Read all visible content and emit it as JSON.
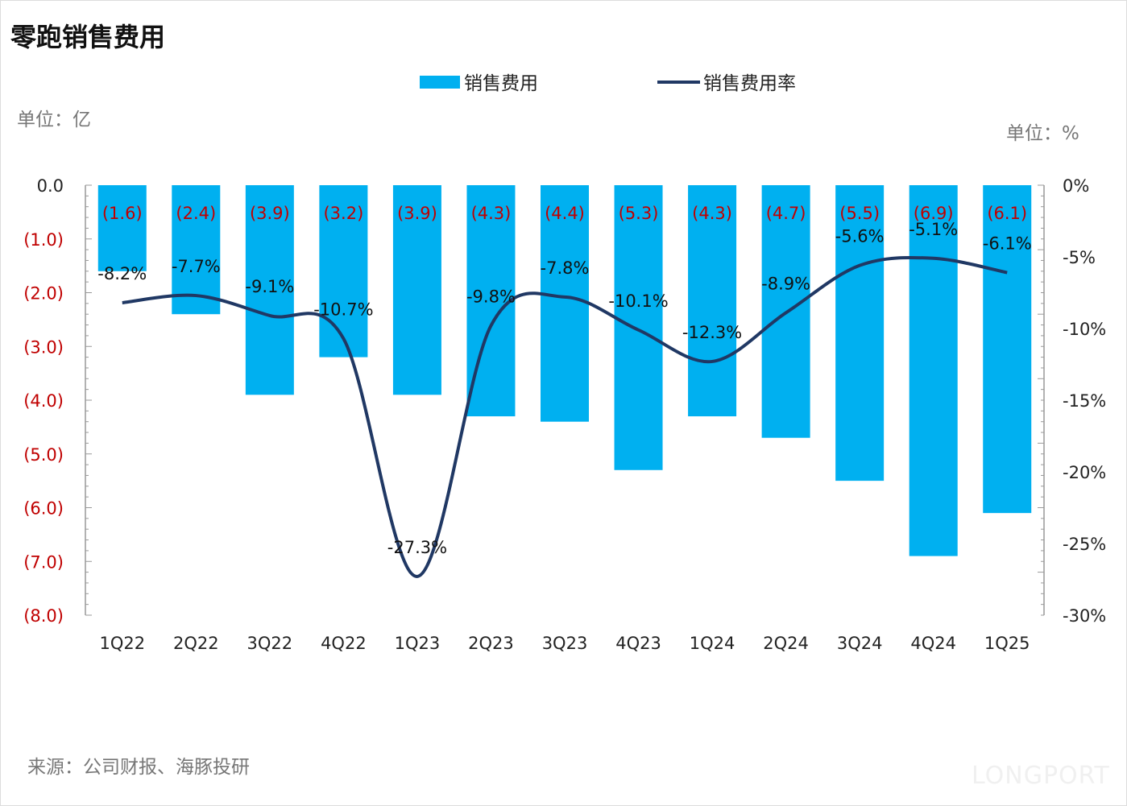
{
  "title": "零跑销售费用",
  "unit_left": "单位：亿",
  "unit_right": "单位：%",
  "source": "来源：公司财报、海豚投研",
  "logo": "LONGPORT",
  "chart_data": {
    "type": "bar+line",
    "title": "零跑销售费用",
    "categories": [
      "1Q22",
      "2Q22",
      "3Q22",
      "4Q22",
      "1Q23",
      "2Q23",
      "3Q23",
      "4Q23",
      "1Q24",
      "2Q24",
      "3Q24",
      "4Q24",
      "1Q25"
    ],
    "series": [
      {
        "name": "销售费用",
        "type": "bar",
        "axis": "left",
        "color": "#00b0f0",
        "values": [
          -1.6,
          -2.4,
          -3.9,
          -3.2,
          -3.9,
          -4.3,
          -4.4,
          -5.3,
          -4.3,
          -4.7,
          -5.5,
          -6.9,
          -6.1
        ],
        "labels": [
          "(1.6)",
          "(2.4)",
          "(3.9)",
          "(3.2)",
          "(3.9)",
          "(4.3)",
          "(4.4)",
          "(5.3)",
          "(4.3)",
          "(4.7)",
          "(5.5)",
          "(6.9)",
          "(6.1)"
        ]
      },
      {
        "name": "销售费用率",
        "type": "line",
        "axis": "right",
        "color": "#203864",
        "values": [
          -8.2,
          -7.7,
          -9.1,
          -10.7,
          -27.3,
          -9.8,
          -7.8,
          -10.1,
          -12.3,
          -8.9,
          -5.6,
          -5.1,
          -6.1
        ],
        "labels": [
          "-8.2%",
          "-7.7%",
          "-9.1%",
          "-10.7%",
          "-27.3%",
          "-9.8%",
          "-7.8%",
          "-10.1%",
          "-12.3%",
          "-8.9%",
          "-5.6%",
          "-5.1%",
          "-6.1%"
        ]
      }
    ],
    "y_left": {
      "range": [
        -8,
        0
      ],
      "ticks": [
        0,
        -1,
        -2,
        -3,
        -4,
        -5,
        -6,
        -7,
        -8
      ],
      "tick_labels": [
        "0.0",
        "(1.0)",
        "(2.0)",
        "(3.0)",
        "(4.0)",
        "(5.0)",
        "(6.0)",
        "(7.0)",
        "(8.0)"
      ]
    },
    "y_right": {
      "range": [
        -30,
        0
      ],
      "ticks": [
        0,
        -5,
        -10,
        -15,
        -20,
        -25,
        -30
      ],
      "tick_labels": [
        "0%",
        "-5%",
        "-10%",
        "-15%",
        "-20%",
        "-25%",
        "-30%"
      ]
    },
    "legend": {
      "position": "top-center",
      "entries": [
        "销售费用",
        "销售费用率"
      ]
    },
    "bar_label_color": "#c00000",
    "grid": false
  }
}
